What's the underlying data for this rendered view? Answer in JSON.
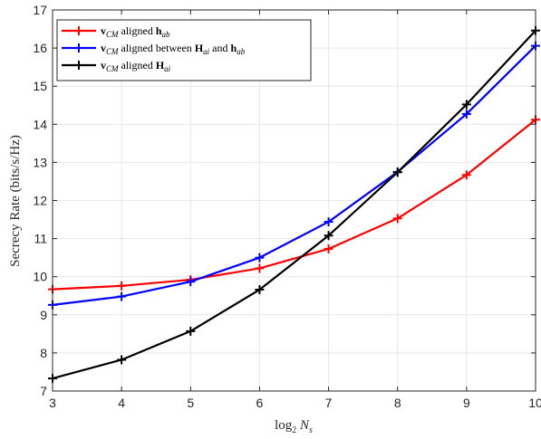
{
  "chart_data": {
    "type": "line",
    "xlabel": "log₂ Nₛ",
    "ylabel": "Secrecy Rate (bits/s/Hz)",
    "x": [
      3,
      4,
      5,
      6,
      7,
      8,
      9,
      10
    ],
    "xlim": [
      3,
      10
    ],
    "ylim": [
      7,
      17
    ],
    "xticks": [
      "3",
      "4",
      "5",
      "6",
      "7",
      "8",
      "9",
      "10"
    ],
    "yticks": [
      "7",
      "8",
      "9",
      "10",
      "11",
      "12",
      "13",
      "14",
      "15",
      "16",
      "17"
    ],
    "grid": true,
    "legend_position": "top-left",
    "series": [
      {
        "name": "v_CM aligned h_ab",
        "color": "#ff0000",
        "marker": "plus",
        "values": [
          9.67,
          9.76,
          9.92,
          10.22,
          10.73,
          11.53,
          12.67,
          14.12
        ]
      },
      {
        "name": "v_CM aligned between H_ai and h_ab",
        "color": "#0000ff",
        "marker": "plus",
        "values": [
          9.26,
          9.48,
          9.87,
          10.5,
          11.44,
          12.75,
          14.27,
          16.06
        ]
      },
      {
        "name": "v_CM aligned H_ai",
        "color": "#000000",
        "marker": "plus",
        "values": [
          7.33,
          7.82,
          8.57,
          9.66,
          11.08,
          12.74,
          14.52,
          16.46
        ]
      }
    ]
  }
}
